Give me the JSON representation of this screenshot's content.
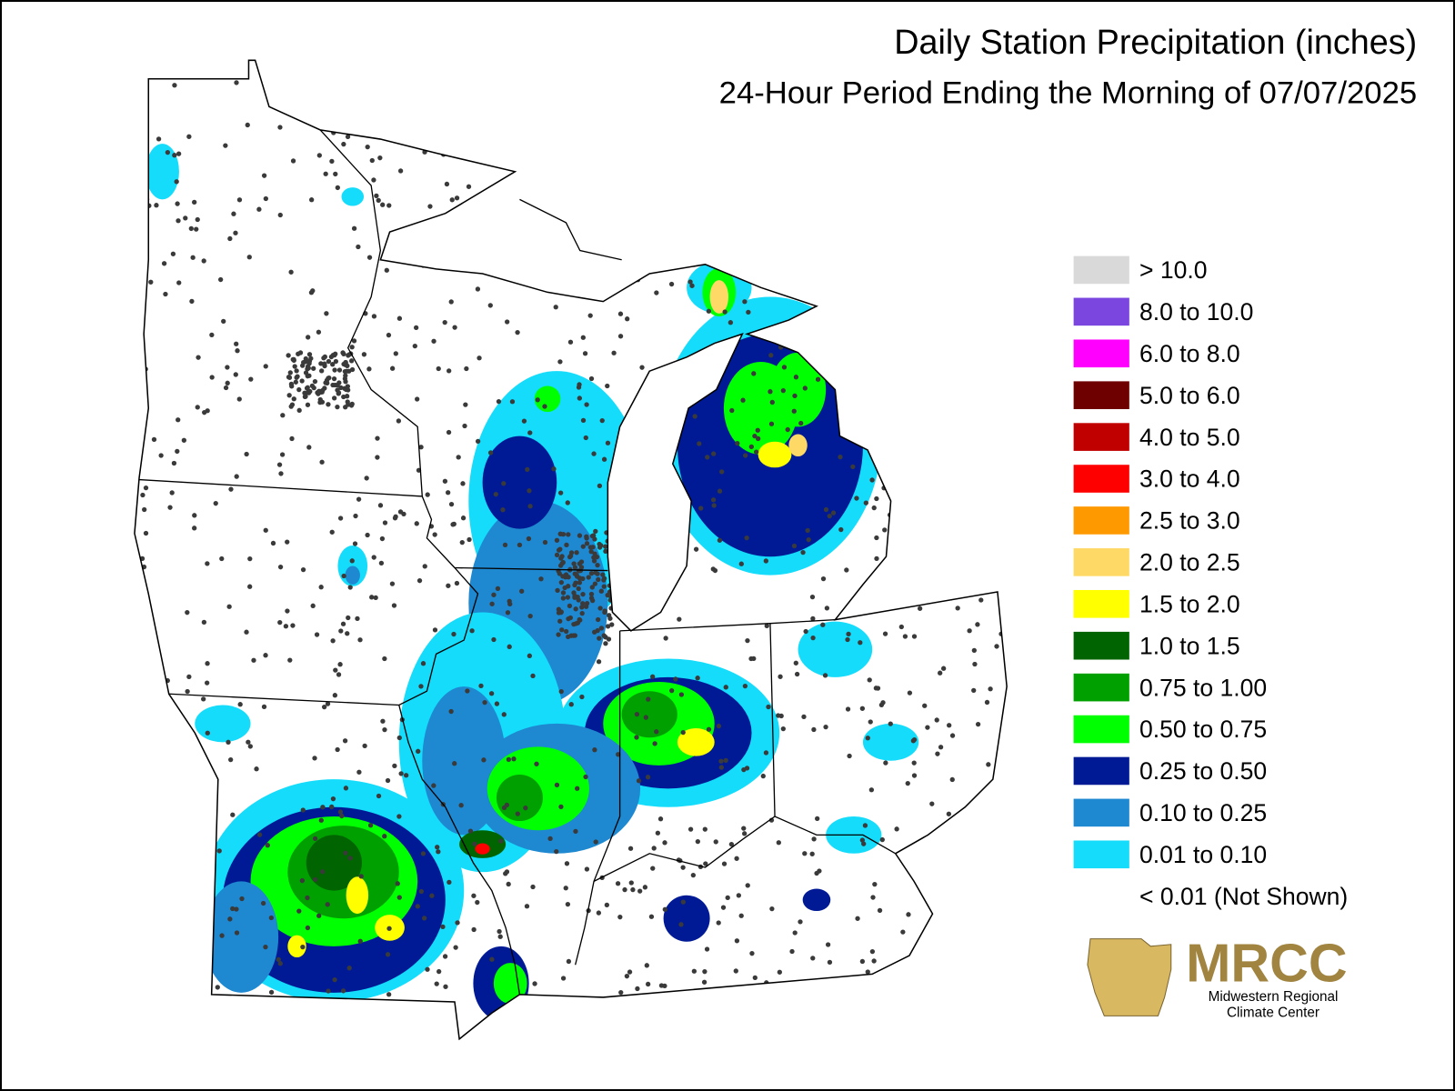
{
  "header": {
    "title": "Daily Station Precipitation (inches)",
    "subtitle": "24-Hour Period Ending the Morning of 07/07/2025"
  },
  "legend": {
    "items": [
      {
        "label": "> 10.0",
        "color": "#d9d9d9"
      },
      {
        "label": "8.0 to 10.0",
        "color": "#7b45e0"
      },
      {
        "label": "6.0 to 8.0",
        "color": "#ff00ff"
      },
      {
        "label": "5.0 to 6.0",
        "color": "#6e0000"
      },
      {
        "label": "4.0 to 5.0",
        "color": "#c00000"
      },
      {
        "label": "3.0 to 4.0",
        "color": "#ff0000"
      },
      {
        "label": "2.5 to 3.0",
        "color": "#ff9900"
      },
      {
        "label": "2.0 to 2.5",
        "color": "#ffd966"
      },
      {
        "label": "1.5 to 2.0",
        "color": "#ffff00"
      },
      {
        "label": "1.0 to 1.5",
        "color": "#006400"
      },
      {
        "label": "0.75 to 1.00",
        "color": "#00a000"
      },
      {
        "label": "0.50 to 0.75",
        "color": "#00ff00"
      },
      {
        "label": "0.25 to 0.50",
        "color": "#001a96"
      },
      {
        "label": "0.10 to 0.25",
        "color": "#1e88d0"
      },
      {
        "label": "0.01 to 0.10",
        "color": "#14dcfa"
      },
      {
        "label": "< 0.01 (Not Shown)"
      }
    ]
  },
  "logo": {
    "abbr": "MRCC",
    "line1": "Midwestern Regional",
    "line2": "Climate Center"
  }
}
